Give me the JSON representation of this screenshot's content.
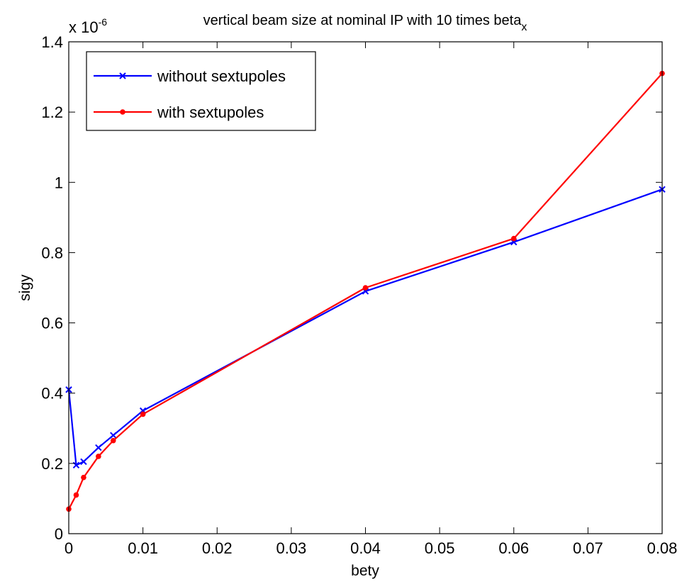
{
  "chart_data": {
    "type": "line",
    "title": "vertical beam size at nominal IP with 10 times beta",
    "title_subscript": "x",
    "xlabel": "bety",
    "ylabel": "sigy",
    "y_exponent_label": "x 10",
    "y_exponent_power": "-6",
    "xlim": [
      0,
      0.08
    ],
    "ylim": [
      0,
      1.4
    ],
    "x_ticks": [
      0,
      0.01,
      0.02,
      0.03,
      0.04,
      0.05,
      0.06,
      0.07,
      0.08
    ],
    "y_ticks": [
      0,
      0.2,
      0.4,
      0.6,
      0.8,
      1,
      1.2,
      1.4
    ],
    "x_tick_labels": [
      "0",
      "0.01",
      "0.02",
      "0.03",
      "0.04",
      "0.05",
      "0.06",
      "0.07",
      "0.08"
    ],
    "y_tick_labels": [
      "0",
      "0.2",
      "0.4",
      "0.6",
      "0.8",
      "1",
      "1.2",
      "1.4"
    ],
    "grid": false,
    "legend_position": "top-left",
    "series": [
      {
        "name": "without sextupoles",
        "color": "#0000ff",
        "marker": "x",
        "x": [
          0,
          0.001,
          0.002,
          0.004,
          0.006,
          0.01,
          0.04,
          0.06,
          0.08
        ],
        "y": [
          0.41,
          0.195,
          0.205,
          0.245,
          0.28,
          0.35,
          0.69,
          0.83,
          0.98
        ]
      },
      {
        "name": "with sextupoles",
        "color": "#ff0000",
        "marker": "dot",
        "x": [
          0,
          0.001,
          0.002,
          0.004,
          0.006,
          0.01,
          0.04,
          0.06,
          0.08
        ],
        "y": [
          0.07,
          0.11,
          0.16,
          0.22,
          0.265,
          0.34,
          0.7,
          0.84,
          1.31
        ]
      }
    ]
  }
}
